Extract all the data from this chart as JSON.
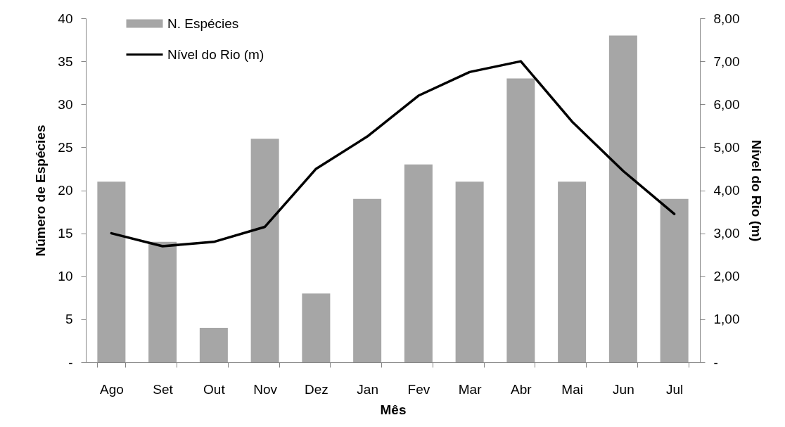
{
  "chart_data": {
    "type": "bar",
    "xlabel": "Mês",
    "ylabel": "Número de Espécies",
    "y2label": "Nível do Rio (m)",
    "categories": [
      "Ago",
      "Set",
      "Out",
      "Nov",
      "Dez",
      "Jan",
      "Fev",
      "Mar",
      "Abr",
      "Mai",
      "Jun",
      "Jul"
    ],
    "series": [
      {
        "name": "N. Espécies",
        "color": "#a6a6a6",
        "values": [
          21,
          14,
          4,
          26,
          8,
          19,
          23,
          21,
          33,
          21,
          38,
          19
        ]
      },
      {
        "name": "Nível do Rio (m)",
        "type": "line",
        "axis": "y2",
        "color": "#000000",
        "values": [
          3.0,
          2.7,
          2.8,
          3.15,
          4.5,
          5.25,
          6.2,
          6.75,
          7.0,
          5.6,
          4.45,
          3.45
        ]
      }
    ],
    "ylim": [
      0,
      40
    ],
    "yticks": [
      {
        "value": 0,
        "label": "-"
      },
      5,
      10,
      15,
      20,
      25,
      30,
      35,
      40
    ],
    "y2lim": [
      0,
      8
    ],
    "y2ticks": [
      {
        "value": 0,
        "label": "-"
      },
      {
        "value": 1,
        "label": "1,00"
      },
      {
        "value": 2,
        "label": "2,00"
      },
      {
        "value": 3,
        "label": "3,00"
      },
      {
        "value": 4,
        "label": "4,00"
      },
      {
        "value": 5,
        "label": "5,00"
      },
      {
        "value": 6,
        "label": "6,00"
      },
      {
        "value": 7,
        "label": "7,00"
      },
      {
        "value": 8,
        "label": "8,00"
      }
    ],
    "grid": false,
    "legend": "top left",
    "marker": "none",
    "line_style": "solid"
  }
}
